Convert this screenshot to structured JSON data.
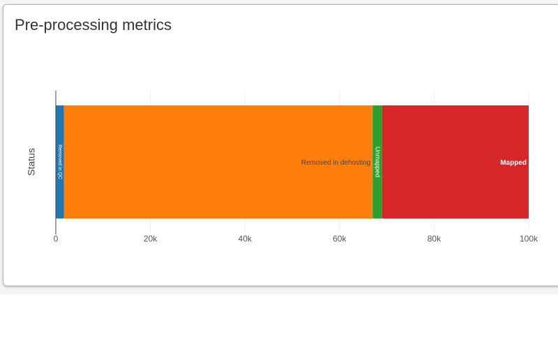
{
  "card": {
    "title": "Pre-processing metrics"
  },
  "chart_data": {
    "type": "bar",
    "orientation": "horizontal",
    "stacked": true,
    "ylabel": "Status",
    "xlim": [
      0,
      100000
    ],
    "xticks": [
      {
        "value": 0,
        "label": "0"
      },
      {
        "value": 20000,
        "label": "20k"
      },
      {
        "value": 40000,
        "label": "40k"
      },
      {
        "value": 60000,
        "label": "60k"
      },
      {
        "value": 80000,
        "label": "80k"
      },
      {
        "value": 100000,
        "label": "100k"
      }
    ],
    "grid": true,
    "series": [
      {
        "name": "Removed in QC",
        "value": 1700,
        "color": "#1f77b4",
        "label_style": "inside-rotated",
        "label_color": "#ffffff"
      },
      {
        "name": "Removed in dehosting",
        "value": 65300,
        "color": "#ff7f0e",
        "label_style": "inside-end",
        "label_color": "#444444"
      },
      {
        "name": "Unmapped",
        "value": 2000,
        "color": "#2ca02c",
        "label_style": "inside-rotated",
        "label_color": "#ffffff"
      },
      {
        "name": "Mapped",
        "value": 31000,
        "color": "#d62728",
        "label_style": "inside-end-bold",
        "label_color": "#ffffff"
      }
    ]
  }
}
